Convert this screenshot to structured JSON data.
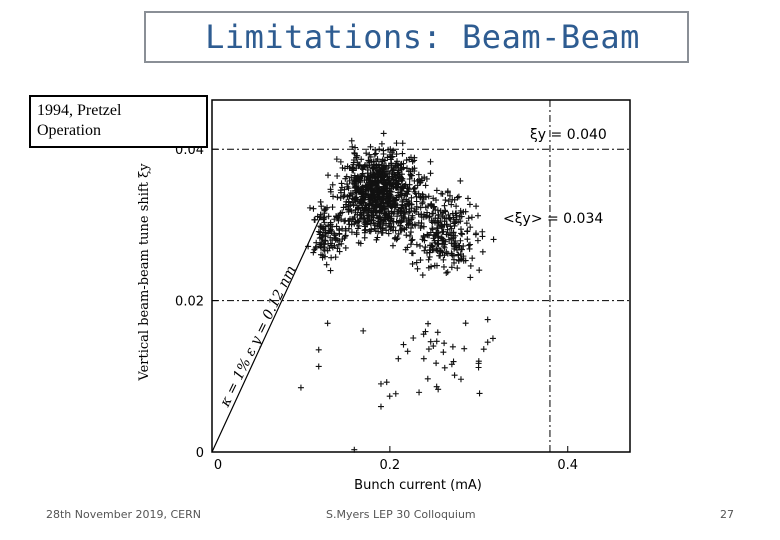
{
  "slide": {
    "title": "Limitations: Beam-Beam",
    "label_line1": "1994, Pretzel",
    "label_line2": "Operation",
    "footer_left": "28th November 2019,  CERN",
    "footer_center": "S.Myers LEP 30 Colloquium",
    "page_number": "27"
  },
  "chart_data": {
    "type": "scatter",
    "xlabel": "Bunch current (mA)",
    "ylabel": "Vertical beam-beam tune shift ξy",
    "xlim": [
      0,
      0.47
    ],
    "ylim": [
      0,
      0.0465
    ],
    "xticks": [
      0,
      0.2,
      0.4
    ],
    "xtick_labels": [
      "0",
      "0.2",
      "0.4"
    ],
    "yticks": [
      0,
      0.02,
      0.04
    ],
    "ytick_labels": [
      "0",
      "0.02",
      "0.04"
    ],
    "reference_lines": [
      {
        "orientation": "horizontal",
        "value": 0.04,
        "style": "dash-dot",
        "label": "ξy = 0.040"
      },
      {
        "orientation": "horizontal",
        "value": 0.02,
        "style": "dash-dot",
        "label": ""
      },
      {
        "orientation": "vertical",
        "value": 0.38,
        "style": "dash-dot",
        "label": ""
      }
    ],
    "avg_label": "<ξy> = 0.034",
    "slope_line": {
      "x": [
        0,
        0.1
      ],
      "y": [
        0,
        0.02
      ],
      "label": "κ = 1%  ε y = 0.12 nm"
    },
    "series": [
      {
        "name": "measurements",
        "marker": "+",
        "clusters": [
          {
            "x_center": 0.19,
            "y_center": 0.034,
            "x_spread": 0.045,
            "y_spread": 0.0055,
            "count": 900
          },
          {
            "x_center": 0.26,
            "y_center": 0.029,
            "x_spread": 0.04,
            "y_spread": 0.0055,
            "count": 260
          },
          {
            "x_center": 0.13,
            "y_center": 0.029,
            "x_spread": 0.02,
            "y_spread": 0.004,
            "count": 110
          },
          {
            "x_center": 0.25,
            "y_center": 0.013,
            "x_spread": 0.06,
            "y_spread": 0.006,
            "count": 35
          }
        ],
        "outliers": [
          [
            0.1,
            0.0085
          ],
          [
            0.19,
            0.009
          ],
          [
            0.19,
            0.006
          ],
          [
            0.16,
            0.0003
          ],
          [
            0.31,
            0.0145
          ],
          [
            0.31,
            0.0175
          ],
          [
            0.13,
            0.017
          ],
          [
            0.12,
            0.0135
          ],
          [
            0.12,
            0.0113
          ],
          [
            0.17,
            0.016
          ],
          [
            0.3,
            0.012
          ],
          [
            0.22,
            0.0133
          ]
        ]
      }
    ]
  }
}
